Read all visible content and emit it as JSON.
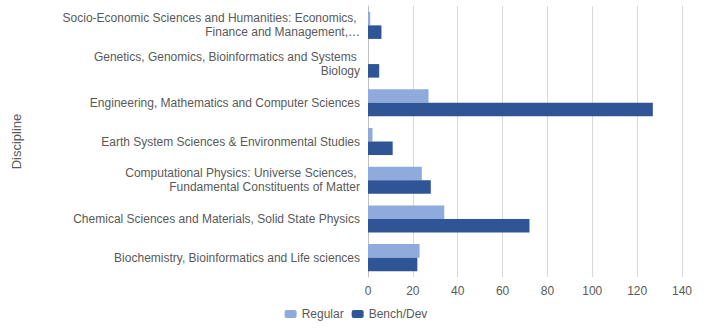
{
  "chart_data": {
    "type": "bar",
    "orientation": "horizontal",
    "y_label": "Discipline",
    "categories": [
      "Biochemistry, Bioinformatics and Life sciences",
      "Chemical Sciences and Materials, Solid State Physics",
      "Computational Physics: Universe Sciences, Fundamental Constituents of Matter",
      "Earth System Sciences & Environmental Studies",
      "Engineering, Mathematics and Computer Sciences",
      "Genetics, Genomics, Bioinformatics and Systems Biology",
      "Socio-Economic Sciences and Humanities: Economics, Finance and Management,…"
    ],
    "series": [
      {
        "name": "Regular",
        "color": "#8faadc",
        "values": [
          23,
          34,
          24,
          2,
          27,
          0,
          1
        ]
      },
      {
        "name": "Bench/Dev",
        "color": "#2f5597",
        "values": [
          22,
          72,
          28,
          11,
          127,
          5,
          6
        ]
      }
    ],
    "xlim": [
      0,
      140
    ],
    "xticks": [
      0,
      20,
      40,
      60,
      80,
      100,
      120,
      140
    ],
    "grid": true,
    "legend": "bottom"
  }
}
